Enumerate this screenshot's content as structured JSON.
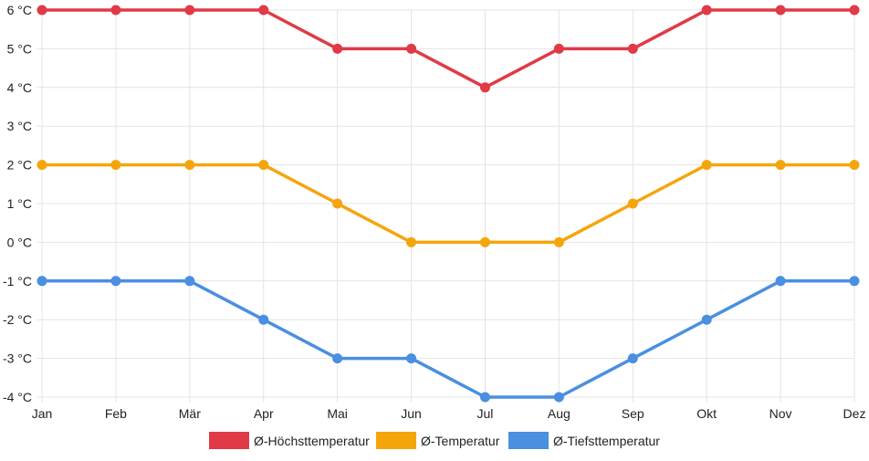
{
  "chart_data": {
    "type": "line",
    "categories": [
      "Jan",
      "Feb",
      "Mär",
      "Apr",
      "Mai",
      "Jun",
      "Jul",
      "Aug",
      "Sep",
      "Okt",
      "Nov",
      "Dez"
    ],
    "ylim": [
      -4,
      6
    ],
    "y_ticks": [
      "6 °C",
      "5 °C",
      "4 °C",
      "3 °C",
      "2 °C",
      "1 °C",
      "0 °C",
      "-1 °C",
      "-2 °C",
      "-3 °C",
      "-4 °C"
    ],
    "grid": true,
    "legend_position": "bottom",
    "series": [
      {
        "name": "Ø-Höchsttemperatur",
        "color": "#e03a46",
        "values": [
          6,
          6,
          6,
          6,
          5,
          5,
          4,
          5,
          5,
          6,
          6,
          6
        ]
      },
      {
        "name": "Ø-Temperatur",
        "color": "#f5a50c",
        "values": [
          2,
          2,
          2,
          2,
          1,
          0,
          0,
          0,
          1,
          2,
          2,
          2
        ]
      },
      {
        "name": "Ø-Tiefsttemperatur",
        "color": "#4a8fe0",
        "values": [
          -1,
          -1,
          -1,
          -2,
          -3,
          -3,
          -4,
          -4,
          -3,
          -2,
          -1,
          -1
        ]
      }
    ]
  }
}
